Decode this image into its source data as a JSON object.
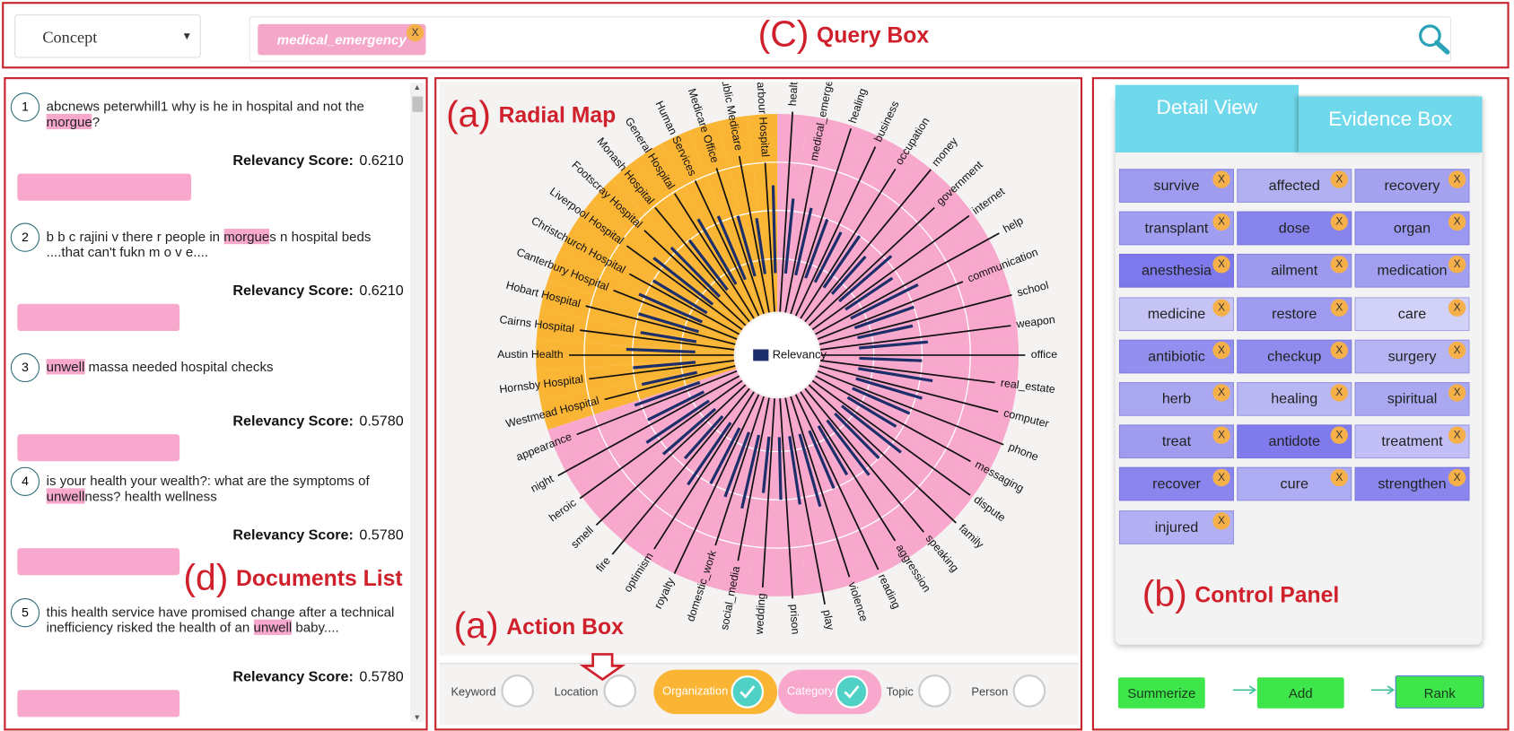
{
  "query_box": {
    "dropdown": "Concept",
    "tags": [
      {
        "text": "medical_emergency",
        "close": "X"
      }
    ],
    "annotation": {
      "letter": "(C)",
      "title": "Query Box"
    }
  },
  "documents": {
    "annotation": {
      "letter": "(d)",
      "title": "Documents List"
    },
    "score_label": "Relevancy Score:",
    "items": [
      {
        "number": "1",
        "before": "abcnews peterwhill1 why is he in hospital and not the ",
        "highlight": "morgue",
        "after": "?",
        "score": "0.6210"
      },
      {
        "number": "2",
        "before": "b b c rajini v there r people in ",
        "highlight": "morgue",
        "after": "s n hospital beds ....that can't fukn m o v e....",
        "score": "0.6210"
      },
      {
        "number": "3",
        "before": "",
        "highlight": "unwell",
        "after": " massa needed hospital checks",
        "score": "0.5780"
      },
      {
        "number": "4",
        "before": "is your health your wealth?: what are the symptoms of ",
        "highlight": "unwell",
        "after": "ness? health wellness",
        "score": "0.5780"
      },
      {
        "number": "5",
        "before": "this health service have promised change after a technical inefficiency risked the health of an ",
        "highlight": "unwell",
        "after": " baby....",
        "score": "0.5780"
      }
    ]
  },
  "radial_map": {
    "annotation": {
      "letter": "(a)",
      "title": "Radial Map"
    },
    "legend": "Relevancy",
    "legend_color": "#1d2f6b",
    "rlim": [
      0,
      1
    ],
    "group_colors": {
      "category": "#f7a8cc",
      "organization": "#fbb535"
    },
    "spokes": [
      {
        "label": "health",
        "group": "category",
        "relevancy": 0.6
      },
      {
        "label": "medical_emerge",
        "group": "category",
        "relevancy": 0.55
      },
      {
        "label": "healing",
        "group": "category",
        "relevancy": 0.5
      },
      {
        "label": "business",
        "group": "category",
        "relevancy": 0.45
      },
      {
        "label": "occupation",
        "group": "category",
        "relevancy": 0.5
      },
      {
        "label": "money",
        "group": "category",
        "relevancy": 0.4
      },
      {
        "label": "government",
        "group": "category",
        "relevancy": 0.55
      },
      {
        "label": "internet",
        "group": "category",
        "relevancy": 0.45
      },
      {
        "label": "help",
        "group": "category",
        "relevancy": 0.6
      },
      {
        "label": "communication",
        "group": "category",
        "relevancy": 0.5
      },
      {
        "label": "school",
        "group": "category",
        "relevancy": 0.45
      },
      {
        "label": "weapon",
        "group": "category",
        "relevancy": 0.55
      },
      {
        "label": "office",
        "group": "category",
        "relevancy": 0.5
      },
      {
        "label": "real_estate",
        "group": "category",
        "relevancy": 0.6
      },
      {
        "label": "computer",
        "group": "category",
        "relevancy": 0.55
      },
      {
        "label": "phone",
        "group": "category",
        "relevancy": 0.5
      },
      {
        "label": "messaging",
        "group": "category",
        "relevancy": 0.45
      },
      {
        "label": "dispute",
        "group": "category",
        "relevancy": 0.6
      },
      {
        "label": "family",
        "group": "category",
        "relevancy": 0.5
      },
      {
        "label": "speaking",
        "group": "category",
        "relevancy": 0.55
      },
      {
        "label": "aggression",
        "group": "category",
        "relevancy": 0.45
      },
      {
        "label": "reading",
        "group": "category",
        "relevancy": 0.5
      },
      {
        "label": "violence",
        "group": "category",
        "relevancy": 0.6
      },
      {
        "label": "play",
        "group": "category",
        "relevancy": 0.55
      },
      {
        "label": "prison",
        "group": "category",
        "relevancy": 0.5
      },
      {
        "label": "wedding",
        "group": "category",
        "relevancy": 0.45
      },
      {
        "label": "social_media",
        "group": "category",
        "relevancy": 0.6
      },
      {
        "label": "domestic_work",
        "group": "category",
        "relevancy": 0.55
      },
      {
        "label": "royalty",
        "group": "category",
        "relevancy": 0.5
      },
      {
        "label": "optimism",
        "group": "category",
        "relevancy": 0.6
      },
      {
        "label": "fire",
        "group": "category",
        "relevancy": 0.45
      },
      {
        "label": "smell",
        "group": "category",
        "relevancy": 0.55
      },
      {
        "label": "heroic",
        "group": "category",
        "relevancy": 0.6
      },
      {
        "label": "night",
        "group": "category",
        "relevancy": 0.5
      },
      {
        "label": "appearance",
        "group": "category",
        "relevancy": 0.55
      },
      {
        "label": "Westmead Hospital",
        "group": "organization",
        "relevancy": 0.45
      },
      {
        "label": "Hornsby Hospital",
        "group": "organization",
        "relevancy": 0.5
      },
      {
        "label": "Austin Health",
        "group": "organization",
        "relevancy": 0.55
      },
      {
        "label": "Cairns Hospital",
        "group": "organization",
        "relevancy": 0.45
      },
      {
        "label": "Hobart Hospital",
        "group": "organization",
        "relevancy": 0.5
      },
      {
        "label": "Canterbury Hospital",
        "group": "organization",
        "relevancy": 0.55
      },
      {
        "label": "Christchurch Hospital",
        "group": "organization",
        "relevancy": 0.5
      },
      {
        "label": "Liverpool Hospital",
        "group": "organization",
        "relevancy": 0.6
      },
      {
        "label": "Footscray Hospital",
        "group": "organization",
        "relevancy": 0.55
      },
      {
        "label": "Monash Hospital",
        "group": "organization",
        "relevancy": 0.5
      },
      {
        "label": "General Hospital",
        "group": "organization",
        "relevancy": 0.6
      },
      {
        "label": "Human Services",
        "group": "organization",
        "relevancy": 0.55
      },
      {
        "label": "Medicare Office",
        "group": "organization",
        "relevancy": 0.5
      },
      {
        "label": "ublic Medicare",
        "group": "organization",
        "relevancy": 0.45
      },
      {
        "label": "narbour Hospital",
        "group": "organization",
        "relevancy": 0.7
      }
    ]
  },
  "action_box": {
    "annotation": {
      "letter": "(a)",
      "title": "Action Box"
    },
    "toggles": [
      {
        "label": "Keyword",
        "checked": false
      },
      {
        "label": "Location",
        "checked": false
      },
      {
        "label": "Organization",
        "checked": true,
        "color": "#fbb535"
      },
      {
        "label": "Category",
        "checked": true,
        "color": "#f7a8cc"
      },
      {
        "label": "Topic",
        "checked": false
      },
      {
        "label": "Person",
        "checked": false
      }
    ]
  },
  "control_panel": {
    "annotation": {
      "letter": "(b)",
      "title": "Control Panel"
    },
    "tabs": [
      "Detail View",
      "Evidence Box"
    ],
    "close": "X",
    "tags": [
      {
        "text": "survive",
        "color": "#9f9cf0"
      },
      {
        "text": "affected",
        "color": "#b2b0f0"
      },
      {
        "text": "recovery",
        "color": "#a5a2f0"
      },
      {
        "text": "transplant",
        "color": "#a09ef0"
      },
      {
        "text": "dose",
        "color": "#8884ee"
      },
      {
        "text": "organ",
        "color": "#9a98f0"
      },
      {
        "text": "anesthesia",
        "color": "#7d79ec"
      },
      {
        "text": "ailment",
        "color": "#9c99ef"
      },
      {
        "text": "medication",
        "color": "#a29ff0"
      },
      {
        "text": "medicine",
        "color": "#c6c4f5"
      },
      {
        "text": "restore",
        "color": "#9e9bf0"
      },
      {
        "text": "care",
        "color": "#d2d1f7"
      },
      {
        "text": "antibiotic",
        "color": "#928fee"
      },
      {
        "text": "checkup",
        "color": "#8f8cee"
      },
      {
        "text": "surgery",
        "color": "#b6b4f3"
      },
      {
        "text": "herb",
        "color": "#aaa7f1"
      },
      {
        "text": "healing",
        "color": "#b8b6f3"
      },
      {
        "text": "spiritual",
        "color": "#aaa8f1"
      },
      {
        "text": "treat",
        "color": "#9f9cf0"
      },
      {
        "text": "antidote",
        "color": "#7f7bec"
      },
      {
        "text": "treatment",
        "color": "#c1bff5"
      },
      {
        "text": "recover",
        "color": "#8a86ee"
      },
      {
        "text": "cure",
        "color": "#aeacf2"
      },
      {
        "text": "strengthen",
        "color": "#8a86ee"
      },
      {
        "text": "injured",
        "color": "#b2b0f2"
      }
    ],
    "buttons": [
      "Summerize",
      "Add",
      "Rank"
    ]
  }
}
